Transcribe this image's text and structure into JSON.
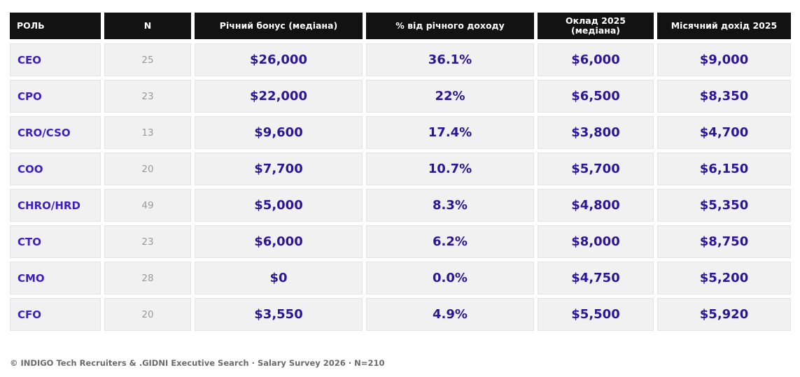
{
  "table": {
    "headers": [
      "РОЛЬ",
      "N",
      "Річний бонус (медіана)",
      "% від річного доходу",
      "Оклад 2025\n(медіана)",
      "Місячний дохід 2025"
    ],
    "rows": [
      {
        "role": "CEO",
        "n": "25",
        "bonus": "$26,000",
        "pct": "36.1%",
        "salary": "$6,000",
        "monthly": "$9,000"
      },
      {
        "role": "CPO",
        "n": "23",
        "bonus": "$22,000",
        "pct": "22%",
        "salary": "$6,500",
        "monthly": "$8,350"
      },
      {
        "role": "CRO/CSO",
        "n": "13",
        "bonus": "$9,600",
        "pct": "17.4%",
        "salary": "$3,800",
        "monthly": "$4,700"
      },
      {
        "role": "COO",
        "n": "20",
        "bonus": "$7,700",
        "pct": "10.7%",
        "salary": "$5,700",
        "monthly": "$6,150"
      },
      {
        "role": "CHRO/HRD",
        "n": "49",
        "bonus": "$5,000",
        "pct": "8.3%",
        "salary": "$4,800",
        "monthly": "$5,350"
      },
      {
        "role": "CTO",
        "n": "23",
        "bonus": "$6,000",
        "pct": "6.2%",
        "salary": "$8,000",
        "monthly": "$8,750"
      },
      {
        "role": "CMO",
        "n": "28",
        "bonus": "$0",
        "pct": "0.0%",
        "salary": "$4,750",
        "monthly": "$5,200"
      },
      {
        "role": "CFO",
        "n": "20",
        "bonus": "$3,550",
        "pct": "4.9%",
        "salary": "$5,500",
        "monthly": "$5,920"
      }
    ]
  },
  "footer": {
    "text": "© INDIGO Tech Recruiters & .GIDNI Executive Search · Salary Survey 2026 · N=210"
  }
}
